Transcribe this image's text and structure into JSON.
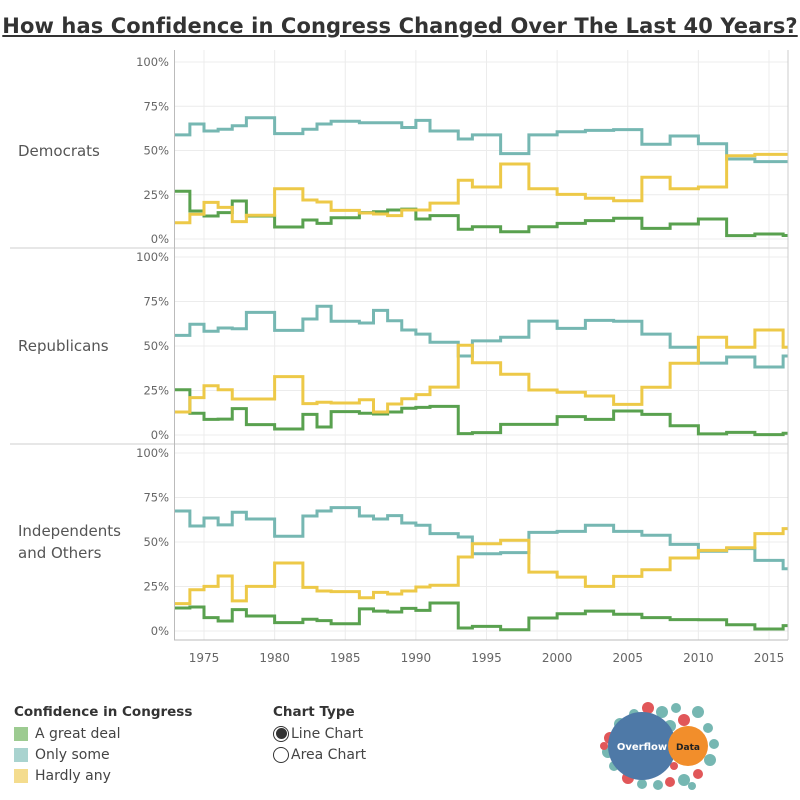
{
  "title": "How has Confidence in Congress Changed Over The Last 40 Years?",
  "colors": {
    "A great deal": "#59a14f",
    "Only some": "#76b7b2",
    "Hardly any": "#edc948"
  },
  "chart_data": {
    "type": "line",
    "step": true,
    "ylim": [
      0,
      100
    ],
    "xlim": [
      1973,
      2016
    ],
    "grid": true,
    "y_ticks": [
      "0%",
      "25%",
      "50%",
      "75%",
      "100%"
    ],
    "x_ticks": [
      "1975",
      "1980",
      "1985",
      "1990",
      "1995",
      "2000",
      "2005",
      "2010",
      "2015"
    ],
    "x": [
      1973,
      1974,
      1975,
      1976,
      1977,
      1978,
      1980,
      1982,
      1983,
      1984,
      1986,
      1987,
      1988,
      1989,
      1990,
      1991,
      1993,
      1994,
      1996,
      1998,
      2000,
      2002,
      2004,
      2006,
      2008,
      2010,
      2012,
      2014,
      2016
    ],
    "panels": [
      {
        "name": "Democrats",
        "series": [
          {
            "name": "A great deal",
            "values": [
              27,
              15.8,
              13,
              14.9,
              21.5,
              13,
              6.8,
              10.7,
              8.8,
              12,
              14.9,
              15.4,
              16.4,
              16.9,
              11.3,
              13.2,
              5.5,
              6.9,
              4.1,
              6.9,
              8.8,
              10.4,
              11.7,
              6,
              8.5,
              11.3,
              1.9,
              2.8,
              2.0
            ]
          },
          {
            "name": "Only some",
            "values": [
              58.8,
              65,
              61,
              62,
              64,
              68.5,
              59.5,
              62,
              65,
              66.5,
              65.7,
              65.7,
              65.7,
              63,
              67,
              61,
              56.5,
              58.8,
              48.2,
              58.8,
              60.6,
              61.4,
              61.8,
              53.5,
              58.2,
              53.8,
              45.2,
              43.7,
              43.7
            ]
          },
          {
            "name": "Hardly any",
            "values": [
              9.2,
              14,
              20.7,
              17.9,
              9.8,
              13.4,
              28.4,
              22,
              20.9,
              16.2,
              14.7,
              14.1,
              13.2,
              16.4,
              16.4,
              20.3,
              33.2,
              29.4,
              42.4,
              28.4,
              25.2,
              23,
              21.6,
              34.9,
              28.4,
              29.4,
              47,
              47.8,
              47.8
            ]
          }
        ]
      },
      {
        "name": "Republicans",
        "series": [
          {
            "name": "A great deal",
            "values": [
              25.4,
              12.2,
              8.8,
              8.9,
              14.8,
              5.8,
              3.4,
              11.6,
              4.5,
              13.1,
              12.2,
              11.8,
              12.9,
              15,
              15.5,
              16.1,
              0.8,
              1.3,
              6,
              6,
              10.3,
              8.8,
              13.5,
              11.6,
              5.2,
              0.6,
              1.5,
              0.2,
              1
            ]
          },
          {
            "name": "Only some",
            "values": [
              56,
              62.2,
              58.3,
              60.1,
              59.7,
              68.9,
              58.8,
              65.2,
              72.3,
              63.9,
              62.9,
              70,
              64.2,
              59,
              56.7,
              52.1,
              44.4,
              52.9,
              54.9,
              64,
              59.9,
              64.4,
              63.9,
              56.7,
              49.3,
              40.4,
              43.8,
              38.2,
              44.4
            ]
          },
          {
            "name": "Hardly any",
            "values": [
              12.9,
              21,
              27.7,
              25.4,
              20.2,
              20.2,
              32.8,
              17.6,
              18.4,
              18,
              19.8,
              12.9,
              17.4,
              20.4,
              22.7,
              26.9,
              50.4,
              40.6,
              34.1,
              25.3,
              24,
              21.9,
              17.2,
              26.8,
              40.3,
              54.9,
              49.3,
              59,
              49.3
            ]
          }
        ]
      },
      {
        "name": "Independents and Others",
        "series": [
          {
            "name": "A great deal",
            "values": [
              12.9,
              13.5,
              7.5,
              5.6,
              12,
              8.4,
              4.7,
              6.6,
              5.8,
              4.1,
              12.4,
              11.2,
              10.7,
              12.7,
              11.6,
              15.7,
              1.7,
              2.6,
              0.7,
              7.3,
              9.7,
              11.2,
              9.4,
              7.5,
              6.4,
              6.3,
              3.5,
              1.1,
              3
            ]
          },
          {
            "name": "Only some",
            "values": [
              67.4,
              59,
              63.5,
              59.6,
              66.7,
              62.9,
              53.2,
              64.6,
              67.4,
              69.3,
              64.6,
              62.9,
              64.8,
              60.7,
              59.4,
              54.7,
              52.8,
              43.4,
              44,
              55.4,
              56,
              59.4,
              56,
              53.8,
              48.7,
              44.8,
              46.3,
              39.7,
              35
            ]
          },
          {
            "name": "Hardly any",
            "values": [
              15.4,
              23.2,
              25.1,
              30.9,
              16.9,
              25.1,
              38.2,
              24.5,
              22.5,
              22.1,
              18.7,
              21.7,
              20.8,
              22.5,
              24.7,
              25.7,
              41.6,
              49,
              51,
              33.1,
              30.3,
              25.1,
              30.7,
              34.4,
              41,
              45.3,
              46.8,
              54.7,
              57.5
            ]
          }
        ]
      }
    ]
  },
  "legend": {
    "title": "Confidence in Congress",
    "items": [
      {
        "label": "A great deal",
        "swatch": "#9dcb91"
      },
      {
        "label": "Only some",
        "swatch": "#a9d3cf"
      },
      {
        "label": "Hardly any",
        "swatch": "#f4dc8e"
      }
    ]
  },
  "chart_type": {
    "title": "Chart Type",
    "options": [
      {
        "label": "Line Chart",
        "selected": true
      },
      {
        "label": "Area Chart",
        "selected": false
      }
    ]
  },
  "logo": {
    "text_left": "Overflow",
    "text_right": "Data"
  }
}
